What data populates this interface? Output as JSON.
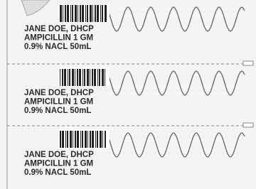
{
  "labels": [
    {
      "lines": [
        "JANE DOE, DHCP",
        "AMPICILLIN 1 GM",
        "0.9% NACL 50mL"
      ]
    },
    {
      "lines": [
        "JANE DOE, DHCP",
        "AMPICILLIN 1 GM",
        "0.9% NACL 50mL"
      ]
    },
    {
      "lines": [
        "JANE DOE, DHCP",
        "AMPICILLIN 1 GM",
        "0.9% NACL 50mL"
      ]
    }
  ]
}
